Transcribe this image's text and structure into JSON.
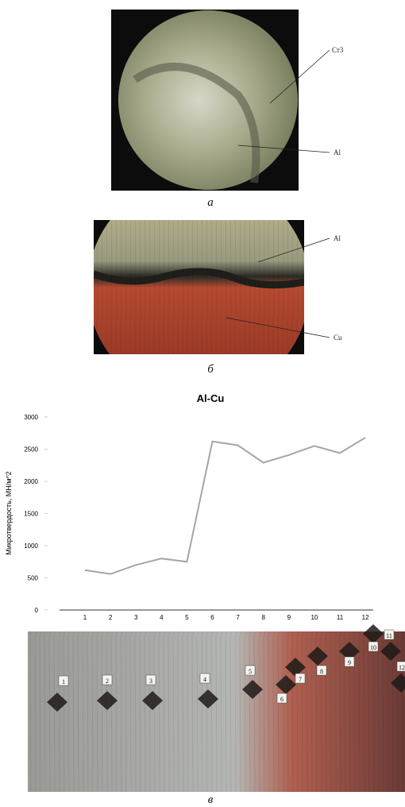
{
  "panels": {
    "a": {
      "caption": "а",
      "labels": [
        "Ст3",
        "Al"
      ]
    },
    "b": {
      "caption": "б",
      "labels": [
        "Al",
        "Cu"
      ]
    },
    "c": {
      "caption": "в",
      "indent_labels": [
        "1",
        "2",
        "3",
        "4",
        "5",
        "6",
        "7",
        "8",
        "9",
        "10",
        "11",
        "12"
      ]
    }
  },
  "chart_data": {
    "type": "line",
    "title": "Al-Cu",
    "y_label": "Микротвердость, МН/м^2",
    "categories": [
      "1",
      "2",
      "3",
      "4",
      "5",
      "6",
      "7",
      "8",
      "9",
      "10",
      "11",
      "12"
    ],
    "series": [
      {
        "name": "Al-Cu",
        "color": "#a6a6a6",
        "values": [
          620,
          560,
          700,
          800,
          750,
          2620,
          2560,
          2290,
          2410,
          2550,
          2440,
          2680
        ]
      }
    ],
    "ylim": [
      0,
      3000
    ],
    "yticks": [
      0,
      500,
      1000,
      1500,
      2000,
      2500,
      3000
    ]
  }
}
